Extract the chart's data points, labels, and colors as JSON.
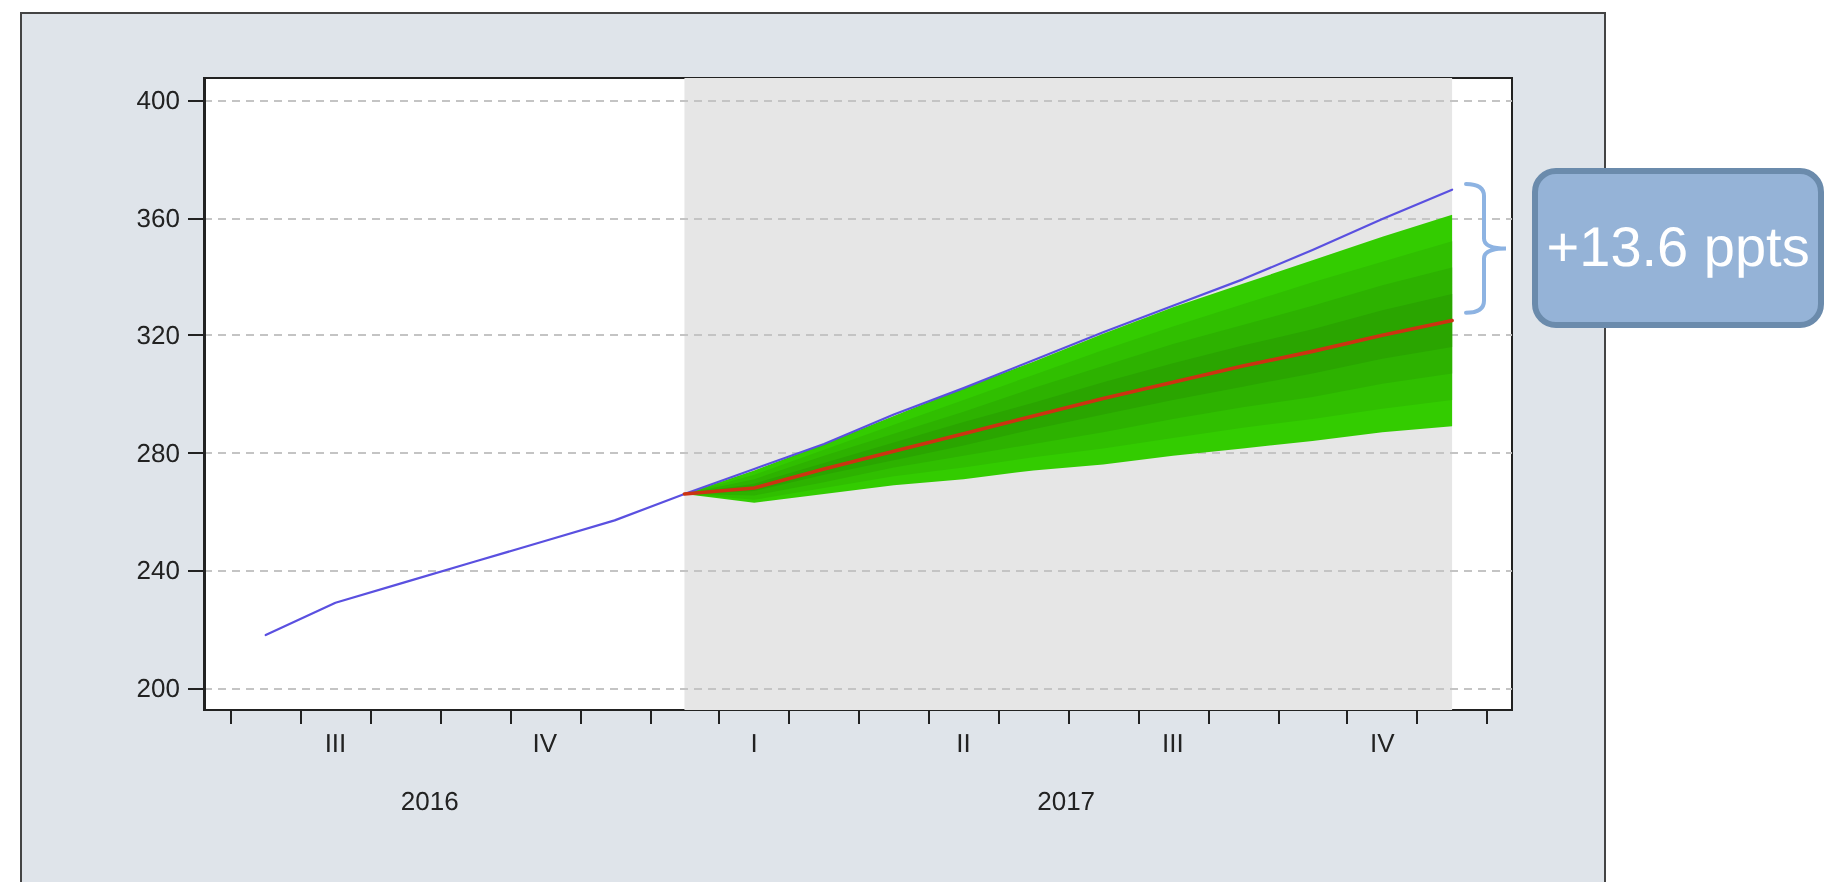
{
  "chart_data": {
    "type": "line",
    "annotations": [
      "+13.6 ppts",
      "2016",
      "2017"
    ],
    "categories": [
      null,
      "III",
      null,
      null,
      "IV",
      null,
      null,
      "I",
      null,
      null,
      "II",
      null,
      null,
      "III",
      null,
      null,
      "IV",
      null
    ],
    "ylim": [
      192.5,
      407.5
    ],
    "yticks": [
      200,
      240,
      280,
      320,
      360,
      400
    ],
    "grid": "y",
    "marker": "none",
    "series": [
      {
        "color": "#5a50e0",
        "values": [
          218,
          229,
          236,
          243,
          250,
          257,
          266,
          274.5,
          283,
          293,
          302,
          311.5,
          321,
          330,
          339,
          349,
          359.5,
          369.5
        ]
      },
      {
        "color": "#33cc00",
        "values": [
          null,
          null,
          null,
          null,
          null,
          null,
          null,
          null,
          null,
          null,
          null,
          null,
          null,
          null,
          null,
          null,
          null,
          null
        ],
        "lower": [
          null,
          null,
          null,
          null,
          null,
          null,
          266,
          263,
          266,
          269,
          271,
          274,
          276,
          279,
          281.5,
          284,
          287,
          289
        ],
        "upper": [
          null,
          null,
          null,
          null,
          null,
          null,
          266,
          274,
          283,
          292.5,
          302,
          311,
          320.5,
          329.5,
          337.5,
          345.5,
          353.5,
          361
        ]
      },
      {
        "color": "#30bf00",
        "values": [
          null,
          null,
          null,
          null,
          null,
          null,
          null,
          null,
          null,
          null,
          null,
          null,
          null,
          null,
          null,
          null,
          null,
          null
        ],
        "lower": [
          null,
          null,
          null,
          null,
          null,
          null,
          266,
          264,
          268,
          272,
          275,
          278.5,
          281.5,
          285,
          288.5,
          291.5,
          295,
          298
        ],
        "upper": [
          null,
          null,
          null,
          null,
          null,
          null,
          266,
          272.5,
          281,
          289.5,
          298,
          306.5,
          315,
          323,
          330.5,
          338,
          345,
          352
        ]
      },
      {
        "color": "#2db200",
        "values": [
          null,
          null,
          null,
          null,
          null,
          null,
          null,
          null,
          null,
          null,
          null,
          null,
          null,
          null,
          null,
          null,
          null,
          null
        ],
        "lower": [
          null,
          null,
          null,
          null,
          null,
          null,
          266,
          265.5,
          270,
          275,
          279,
          283,
          287,
          291.5,
          295.5,
          299,
          303.5,
          307
        ],
        "upper": [
          null,
          null,
          null,
          null,
          null,
          null,
          266,
          271,
          279,
          286.5,
          294,
          302,
          309.5,
          317,
          323.5,
          330,
          337,
          343
        ]
      },
      {
        "color": "#2aa500",
        "values": [
          null,
          null,
          null,
          null,
          null,
          null,
          null,
          null,
          null,
          null,
          null,
          null,
          null,
          null,
          null,
          null,
          null,
          null
        ],
        "lower": [
          null,
          null,
          null,
          null,
          null,
          null,
          266,
          267,
          272.5,
          277.5,
          282.5,
          288,
          293,
          298,
          302.5,
          307,
          312,
          316
        ],
        "upper": [
          null,
          null,
          null,
          null,
          null,
          null,
          266,
          269.5,
          276.5,
          283.5,
          290.5,
          297,
          304,
          310.5,
          316.5,
          322,
          328.5,
          334
        ]
      },
      {
        "color": "#cc3311",
        "values": [
          null,
          null,
          null,
          null,
          null,
          null,
          266,
          268,
          274.5,
          280.5,
          286.5,
          292.5,
          298.5,
          304,
          309.5,
          314.5,
          320,
          325
        ]
      }
    ]
  }
}
